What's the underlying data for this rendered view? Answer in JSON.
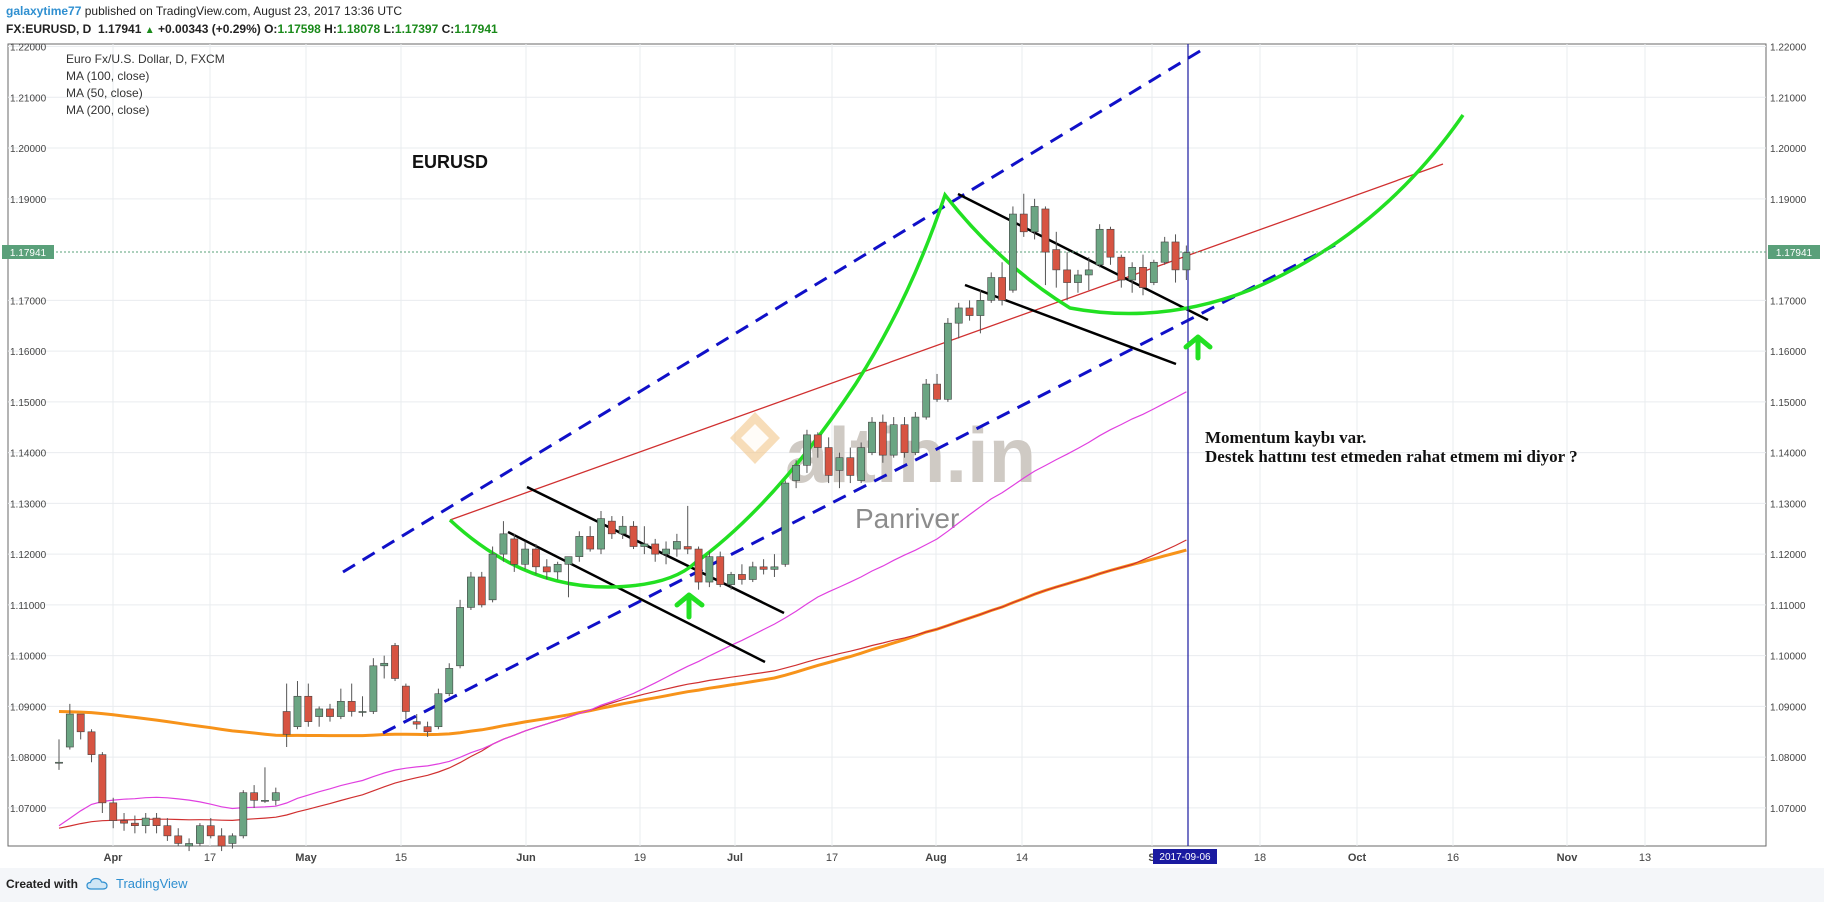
{
  "header": {
    "user": "galaxytime77",
    "published": "published on TradingView.com, August 23, 2017 13:36 UTC",
    "symbol": "FX:EURUSD, D",
    "last": "1.17941",
    "change": "+0.00343 (+0.29%)",
    "o_label": "O:",
    "o": "1.17598",
    "h_label": "H:",
    "h": "1.18078",
    "l_label": "L:",
    "l": "1.17397",
    "c_label": "C:",
    "c": "1.17941"
  },
  "legend": {
    "title": "Euro Fx/U.S. Dollar, D, FXCM",
    "ma100": "MA (100, close)",
    "ma50": "MA (50, close)",
    "ma200": "MA (200, close)"
  },
  "annotations": {
    "label": "EURUSD",
    "note1": "Momentum kaybı var.",
    "note2": "Destek hattını test etmeden rahat etmem mi diyor ?",
    "watermark": "altin.in",
    "watermark_sub": "Panriver"
  },
  "footer": {
    "created": "Created with",
    "brand": "TradingView"
  },
  "colors": {
    "up": "#6ba583",
    "down": "#d75442",
    "ma50": "#e040e0",
    "ma100": "#d03030",
    "ma200": "#f7931a",
    "curve": "#22e022",
    "channel": "#1010c8",
    "price_line": "#5aa07a"
  },
  "chart_data": {
    "type": "candlestick",
    "y_range": [
      1.0625,
      1.2205
    ],
    "y_ticks": [
      "1.22000",
      "1.21000",
      "1.20000",
      "1.19000",
      "1.17000",
      "1.16000",
      "1.15000",
      "1.14000",
      "1.13000",
      "1.12000",
      "1.11000",
      "1.10000",
      "1.09000",
      "1.08000",
      "1.07000"
    ],
    "x_ticks": [
      "Apr",
      "17",
      "May",
      "15",
      "Jun",
      "19",
      "Jul",
      "17",
      "Aug",
      "14",
      "S",
      "18",
      "Oct",
      "16",
      "Nov",
      "13"
    ],
    "current_price": "1.17941",
    "crosshair_date": "2017-09-06",
    "candles": [
      [
        1.079,
        1.0835,
        1.0775,
        1.079
      ],
      [
        1.082,
        1.0905,
        1.0815,
        1.0885
      ],
      [
        1.0885,
        1.0885,
        1.0835,
        1.085
      ],
      [
        1.085,
        1.0855,
        1.079,
        1.0805
      ],
      [
        1.0805,
        1.081,
        1.069,
        1.071
      ],
      [
        1.071,
        1.072,
        1.066,
        1.0675
      ],
      [
        1.0675,
        1.069,
        1.0655,
        1.067
      ],
      [
        1.067,
        1.0685,
        1.065,
        1.0665
      ],
      [
        1.0665,
        1.069,
        1.065,
        1.068
      ],
      [
        1.068,
        1.069,
        1.065,
        1.0665
      ],
      [
        1.0665,
        1.068,
        1.0635,
        1.0645
      ],
      [
        1.0645,
        1.066,
        1.0625,
        1.063
      ],
      [
        1.0625,
        1.064,
        1.0615,
        1.063
      ],
      [
        1.063,
        1.067,
        1.0625,
        1.0665
      ],
      [
        1.0665,
        1.068,
        1.064,
        1.0645
      ],
      [
        1.0645,
        1.066,
        1.0615,
        1.0625
      ],
      [
        1.063,
        1.065,
        1.062,
        1.0645
      ],
      [
        1.0645,
        1.0735,
        1.064,
        1.073
      ],
      [
        1.073,
        1.0745,
        1.07,
        1.0715
      ],
      [
        1.0715,
        1.078,
        1.071,
        1.0715
      ],
      [
        1.0715,
        1.074,
        1.0705,
        1.073
      ],
      [
        1.089,
        1.0945,
        1.082,
        1.0845
      ],
      [
        1.086,
        1.095,
        1.0855,
        1.092
      ],
      [
        1.092,
        1.0945,
        1.086,
        1.087
      ],
      [
        1.088,
        1.09,
        1.086,
        1.0895
      ],
      [
        1.0895,
        1.0905,
        1.087,
        1.088
      ],
      [
        1.088,
        1.0935,
        1.0875,
        1.091
      ],
      [
        1.091,
        1.0945,
        1.088,
        1.089
      ],
      [
        1.089,
        1.092,
        1.088,
        1.089
      ],
      [
        1.089,
        1.0995,
        1.0885,
        1.098
      ],
      [
        1.098,
        1.1,
        1.0955,
        1.0985
      ],
      [
        1.102,
        1.1025,
        1.095,
        1.0955
      ],
      [
        1.094,
        1.0945,
        1.0875,
        1.089
      ],
      [
        1.087,
        1.0885,
        1.0855,
        1.0865
      ],
      [
        1.086,
        1.087,
        1.084,
        1.085
      ],
      [
        1.086,
        1.0935,
        1.0855,
        1.0925
      ],
      [
        1.0925,
        1.0985,
        1.092,
        1.0975
      ],
      [
        1.098,
        1.111,
        1.0975,
        1.1095
      ],
      [
        1.1095,
        1.1165,
        1.109,
        1.1155
      ],
      [
        1.1155,
        1.1165,
        1.1095,
        1.11
      ],
      [
        1.111,
        1.1215,
        1.1105,
        1.12
      ],
      [
        1.12,
        1.1265,
        1.1185,
        1.124
      ],
      [
        1.123,
        1.124,
        1.1165,
        1.118
      ],
      [
        1.118,
        1.1225,
        1.117,
        1.121
      ],
      [
        1.121,
        1.122,
        1.116,
        1.1175
      ],
      [
        1.1175,
        1.119,
        1.115,
        1.1165
      ],
      [
        1.1165,
        1.1185,
        1.115,
        1.118
      ],
      [
        1.118,
        1.1195,
        1.1115,
        1.1195
      ],
      [
        1.1195,
        1.1245,
        1.1185,
        1.1235
      ],
      [
        1.1235,
        1.1255,
        1.1205,
        1.121
      ],
      [
        1.121,
        1.1285,
        1.12,
        1.127
      ],
      [
        1.1265,
        1.1275,
        1.123,
        1.124
      ],
      [
        1.124,
        1.1275,
        1.123,
        1.1255
      ],
      [
        1.1255,
        1.1265,
        1.121,
        1.1215
      ],
      [
        1.1215,
        1.1255,
        1.12,
        1.122
      ],
      [
        1.122,
        1.123,
        1.1185,
        1.12
      ],
      [
        1.12,
        1.1225,
        1.118,
        1.121
      ],
      [
        1.121,
        1.124,
        1.1195,
        1.1225
      ],
      [
        1.1215,
        1.1295,
        1.12,
        1.121
      ],
      [
        1.121,
        1.1215,
        1.113,
        1.1145
      ],
      [
        1.1145,
        1.1205,
        1.1135,
        1.1195
      ],
      [
        1.1195,
        1.1205,
        1.1135,
        1.114
      ],
      [
        1.114,
        1.1165,
        1.113,
        1.116
      ],
      [
        1.116,
        1.118,
        1.114,
        1.115
      ],
      [
        1.115,
        1.1185,
        1.1145,
        1.1175
      ],
      [
        1.1175,
        1.119,
        1.116,
        1.117
      ],
      [
        1.117,
        1.12,
        1.1155,
        1.1175
      ],
      [
        1.118,
        1.1345,
        1.1175,
        1.134
      ],
      [
        1.1345,
        1.1385,
        1.133,
        1.1375
      ],
      [
        1.1375,
        1.1445,
        1.136,
        1.1435
      ],
      [
        1.1435,
        1.144,
        1.139,
        1.141
      ],
      [
        1.141,
        1.143,
        1.134,
        1.1355
      ],
      [
        1.1365,
        1.14,
        1.133,
        1.139
      ],
      [
        1.139,
        1.141,
        1.134,
        1.1355
      ],
      [
        1.1345,
        1.142,
        1.134,
        1.141
      ],
      [
        1.14,
        1.147,
        1.1395,
        1.146
      ],
      [
        1.146,
        1.1475,
        1.138,
        1.1395
      ],
      [
        1.1395,
        1.147,
        1.139,
        1.1455
      ],
      [
        1.1455,
        1.147,
        1.139,
        1.14
      ],
      [
        1.14,
        1.148,
        1.1395,
        1.147
      ],
      [
        1.147,
        1.1545,
        1.1465,
        1.1535
      ],
      [
        1.1535,
        1.1555,
        1.15,
        1.1505
      ],
      [
        1.1505,
        1.1665,
        1.15,
        1.1655
      ],
      [
        1.1655,
        1.1695,
        1.1625,
        1.1685
      ],
      [
        1.1685,
        1.17,
        1.166,
        1.167
      ],
      [
        1.167,
        1.172,
        1.1635,
        1.17
      ],
      [
        1.17,
        1.1755,
        1.1695,
        1.1745
      ],
      [
        1.1745,
        1.1775,
        1.169,
        1.17
      ],
      [
        1.172,
        1.1885,
        1.1715,
        1.187
      ],
      [
        1.187,
        1.191,
        1.1825,
        1.1835
      ],
      [
        1.1835,
        1.19,
        1.182,
        1.1885
      ],
      [
        1.188,
        1.1885,
        1.173,
        1.1795
      ],
      [
        1.18,
        1.1835,
        1.1725,
        1.176
      ],
      [
        1.176,
        1.1795,
        1.17,
        1.1735
      ],
      [
        1.1735,
        1.176,
        1.1715,
        1.175
      ],
      [
        1.175,
        1.1785,
        1.172,
        1.176
      ],
      [
        1.177,
        1.185,
        1.1765,
        1.184
      ],
      [
        1.184,
        1.1845,
        1.177,
        1.1785
      ],
      [
        1.1785,
        1.179,
        1.1725,
        1.174
      ],
      [
        1.174,
        1.1775,
        1.1715,
        1.1765
      ],
      [
        1.1765,
        1.179,
        1.171,
        1.1725
      ],
      [
        1.1735,
        1.178,
        1.173,
        1.1775
      ],
      [
        1.1775,
        1.1825,
        1.177,
        1.1815
      ],
      [
        1.1815,
        1.183,
        1.1735,
        1.176
      ],
      [
        1.176,
        1.1808,
        1.174,
        1.1794
      ]
    ]
  }
}
